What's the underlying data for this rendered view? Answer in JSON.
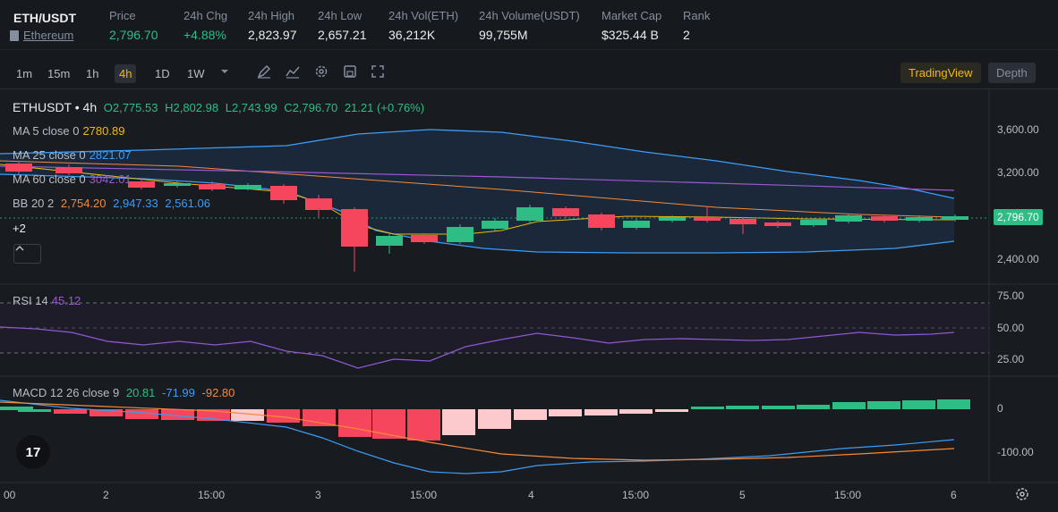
{
  "header": {
    "pair": "ETH/USDT",
    "name": "Ethereum",
    "stats": [
      {
        "label": "Price",
        "value": "2,796.70",
        "color": "green"
      },
      {
        "label": "24h Chg",
        "value": "+4.88%",
        "color": "green"
      },
      {
        "label": "24h High",
        "value": "2,823.97"
      },
      {
        "label": "24h Low",
        "value": "2,657.21"
      },
      {
        "label": "24h Vol(ETH)",
        "value": "36,212K"
      },
      {
        "label": "24h Volume(USDT)",
        "value": "99,755M"
      },
      {
        "label": "Market Cap",
        "value": "$325.44 B"
      },
      {
        "label": "Rank",
        "value": "2"
      }
    ]
  },
  "toolbar": {
    "intervals": [
      "1m",
      "15m",
      "1h",
      "4h",
      "1D",
      "1W"
    ],
    "active_interval": "4h",
    "tradingview": "TradingView",
    "depth": "Depth"
  },
  "legend": {
    "symbol": "ETHUSDT • 4h",
    "o": "O2,775.53",
    "h": "H2,802.98",
    "l": "L2,743.99",
    "c": "C2,796.70",
    "chg": "21.21 (+0.76%)",
    "ma5_label": "MA 5 close 0",
    "ma5_val": "2780.89",
    "ma25_label": "MA 25 close 0",
    "ma25_val": "2821.07",
    "ma60_label": "MA 60 close 0",
    "ma60_val": "3042.01",
    "bb_label": "BB 20 2",
    "bb_mid": "2,754.20",
    "bb_up": "2,947.33",
    "bb_low": "2,561.06",
    "more": "+2",
    "rsi_label": "RSI 14",
    "rsi_val": "45.12",
    "macd_label": "MACD 12 26 close 9",
    "macd_v1": "20.81",
    "macd_v2": "-71.99",
    "macd_v3": "-92.80"
  },
  "price_axis": [
    "3,600.00",
    "3,200.00",
    "2,400.00"
  ],
  "current_price": "2,796.70",
  "rsi_axis": [
    "75.00",
    "50.00",
    "25.00"
  ],
  "macd_axis": [
    "0",
    "-100.00"
  ],
  "time_axis": [
    "00",
    "2",
    "15:00",
    "3",
    "15:00",
    "4",
    "15:00",
    "5",
    "15:00",
    "6"
  ],
  "colors": {
    "up": "#2ebd85",
    "down": "#f6465d",
    "accent": "#f0b90b"
  },
  "logo": "17"
}
